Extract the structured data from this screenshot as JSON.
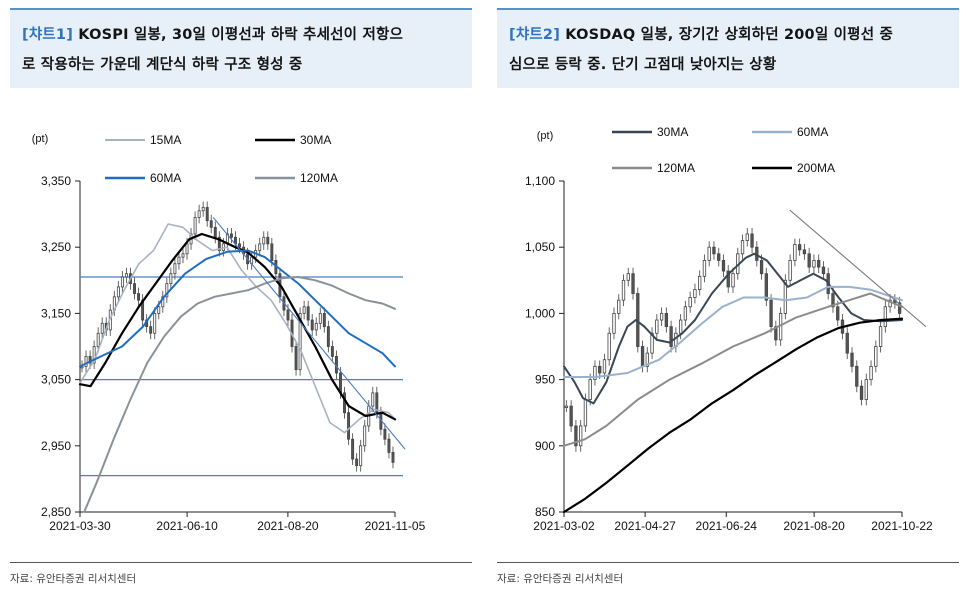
{
  "charts": [
    {
      "tag": "[챠트1]",
      "title_line1": "KOSPI 일봉, 30일 이평선과 하락 추세선이 저항으",
      "title_line2": "로 작용하는 가운데 계단식 하락 구조 형성 중",
      "source": "자료: 유안타증권 리서치센터"
    },
    {
      "tag": "[챠트2]",
      "title_line1": "KOSDAQ 일봉, 장기간 상회하던 200일 이평선 중",
      "title_line2": "심으로 등락 중. 단기 고점대 낮아지는 상황",
      "source": "자료: 유안타증권 리서치센터"
    }
  ],
  "chart_data": [
    {
      "type": "line",
      "unit": "(pt)",
      "ylim": [
        2850,
        3350
      ],
      "yticks": [
        "3,350",
        "3,250",
        "3,150",
        "3,050",
        "2,950",
        "2,850"
      ],
      "xticks": [
        "2021-03-30",
        "2021-06-10",
        "2021-08-20",
        "2021-11-05"
      ],
      "x_start": "2021-03-30",
      "x_end": "2021-11-05",
      "horizontal_lines": [
        3205,
        3050,
        2905
      ],
      "trendline": [
        [
          "2021-07-01",
          3295
        ],
        [
          "2021-11-12",
          2945
        ]
      ],
      "candles": [
        3070,
        3085,
        3075,
        3100,
        3120,
        3135,
        3125,
        3155,
        3175,
        3190,
        3205,
        3210,
        3195,
        3180,
        3170,
        3140,
        3130,
        3120,
        3150,
        3160,
        3175,
        3195,
        3210,
        3225,
        3235,
        3240,
        3255,
        3270,
        3295,
        3305,
        3310,
        3290,
        3280,
        3265,
        3245,
        3255,
        3270,
        3265,
        3255,
        3250,
        3240,
        3225,
        3235,
        3245,
        3255,
        3265,
        3255,
        3230,
        3210,
        3175,
        3155,
        3140,
        3100,
        3065,
        3150,
        3160,
        3140,
        3125,
        3135,
        3150,
        3130,
        3100,
        3085,
        3060,
        3030,
        3000,
        2960,
        2930,
        2920,
        2950,
        2980,
        3010,
        3030,
        3000,
        2975,
        2960,
        2940,
        2925
      ],
      "series": [
        {
          "name": "15MA",
          "color": "#a8b3c2",
          "width": 1.6,
          "values": [
            [
              0,
              3045
            ],
            [
              7,
              3080
            ],
            [
              14,
              3140
            ],
            [
              21,
              3185
            ],
            [
              28,
              3225
            ],
            [
              35,
              3245
            ],
            [
              42,
              3285
            ],
            [
              49,
              3280
            ],
            [
              56,
              3260
            ],
            [
              63,
              3245
            ],
            [
              70,
              3250
            ],
            [
              77,
              3215
            ],
            [
              84,
              3190
            ],
            [
              91,
              3170
            ],
            [
              98,
              3135
            ],
            [
              105,
              3095
            ],
            [
              112,
              3040
            ],
            [
              119,
              2985
            ],
            [
              126,
              2970
            ],
            [
              133,
              2990
            ],
            [
              140,
              3005
            ],
            [
              147,
              3000
            ],
            [
              150,
              2990
            ]
          ]
        },
        {
          "name": "30MA",
          "color": "#000000",
          "width": 2.2,
          "values": [
            [
              0,
              3043
            ],
            [
              5,
              3040
            ],
            [
              12,
              3075
            ],
            [
              20,
              3120
            ],
            [
              28,
              3160
            ],
            [
              36,
              3195
            ],
            [
              44,
              3230
            ],
            [
              52,
              3262
            ],
            [
              58,
              3270
            ],
            [
              66,
              3262
            ],
            [
              74,
              3250
            ],
            [
              80,
              3242
            ],
            [
              88,
              3220
            ],
            [
              96,
              3190
            ],
            [
              104,
              3145
            ],
            [
              112,
              3100
            ],
            [
              120,
              3050
            ],
            [
              128,
              3010
            ],
            [
              136,
              2995
            ],
            [
              144,
              3000
            ],
            [
              150,
              2990
            ]
          ]
        },
        {
          "name": "60MA",
          "color": "#1e6dc2",
          "width": 2.0,
          "values": [
            [
              0,
              3070
            ],
            [
              10,
              3085
            ],
            [
              20,
              3100
            ],
            [
              30,
              3130
            ],
            [
              40,
              3175
            ],
            [
              50,
              3210
            ],
            [
              60,
              3232
            ],
            [
              70,
              3243
            ],
            [
              80,
              3245
            ],
            [
              88,
              3235
            ],
            [
              96,
              3215
            ],
            [
              104,
              3195
            ],
            [
              112,
              3170
            ],
            [
              120,
              3145
            ],
            [
              128,
              3120
            ],
            [
              136,
              3105
            ],
            [
              144,
              3090
            ],
            [
              150,
              3070
            ]
          ]
        },
        {
          "name": "120MA",
          "color": "#8a9299",
          "width": 2.0,
          "values": [
            [
              2,
              2850
            ],
            [
              8,
              2895
            ],
            [
              16,
              2960
            ],
            [
              24,
              3020
            ],
            [
              32,
              3075
            ],
            [
              40,
              3115
            ],
            [
              48,
              3145
            ],
            [
              56,
              3165
            ],
            [
              64,
              3175
            ],
            [
              72,
              3180
            ],
            [
              80,
              3185
            ],
            [
              88,
              3195
            ],
            [
              96,
              3203
            ],
            [
              104,
              3205
            ],
            [
              112,
              3200
            ],
            [
              120,
              3192
            ],
            [
              128,
              3180
            ],
            [
              136,
              3170
            ],
            [
              144,
              3165
            ],
            [
              150,
              3157
            ]
          ]
        }
      ]
    },
    {
      "type": "line",
      "unit": "(pt)",
      "ylim": [
        850,
        1100
      ],
      "yticks": [
        "1,100",
        "1,050",
        "1,000",
        "950",
        "900",
        "850"
      ],
      "xticks": [
        "2021-03-02",
        "2021-04-27",
        "2021-06-24",
        "2021-08-20",
        "2021-10-22"
      ],
      "x_start": "2021-03-02",
      "x_end": "2021-10-29",
      "trendline": [
        [
          "2021-08-10",
          1078
        ],
        [
          "2021-11-15",
          990
        ]
      ],
      "candles": [
        930,
        915,
        900,
        915,
        935,
        950,
        960,
        955,
        965,
        985,
        1000,
        1010,
        1025,
        1030,
        1015,
        975,
        960,
        970,
        985,
        995,
        1000,
        990,
        975,
        985,
        995,
        1005,
        1012,
        1018,
        1028,
        1040,
        1050,
        1045,
        1040,
        1032,
        1020,
        1030,
        1045,
        1055,
        1060,
        1050,
        1040,
        1030,
        1010,
        990,
        980,
        1000,
        1025,
        1040,
        1052,
        1048,
        1045,
        1035,
        1040,
        1035,
        1030,
        1015,
        1005,
        995,
        985,
        970,
        960,
        945,
        935,
        950,
        960,
        975,
        990,
        1005,
        1010,
        1008,
        1000
      ],
      "series": [
        {
          "name": "30MA",
          "color": "#3a4653",
          "width": 2.0,
          "values": [
            [
              0,
              960
            ],
            [
              5,
              948
            ],
            [
              9,
              936
            ],
            [
              14,
              932
            ],
            [
              20,
              948
            ],
            [
              26,
              975
            ],
            [
              30,
              990
            ],
            [
              34,
              995
            ],
            [
              38,
              990
            ],
            [
              44,
              980
            ],
            [
              50,
              978
            ],
            [
              56,
              985
            ],
            [
              62,
              995
            ],
            [
              70,
              1015
            ],
            [
              78,
              1030
            ],
            [
              86,
              1042
            ],
            [
              90,
              1045
            ],
            [
              96,
              1040
            ],
            [
              102,
              1028
            ],
            [
              106,
              1020
            ],
            [
              112,
              1025
            ],
            [
              118,
              1030
            ],
            [
              124,
              1025
            ],
            [
              130,
              1012
            ],
            [
              136,
              1000
            ],
            [
              142,
              995
            ],
            [
              150,
              994
            ],
            [
              160,
              995
            ]
          ]
        },
        {
          "name": "60MA",
          "color": "#9ab1cc",
          "width": 2.0,
          "values": [
            [
              0,
              952
            ],
            [
              15,
              952
            ],
            [
              30,
              955
            ],
            [
              45,
              965
            ],
            [
              55,
              978
            ],
            [
              65,
              992
            ],
            [
              75,
              1005
            ],
            [
              85,
              1012
            ],
            [
              95,
              1012
            ],
            [
              105,
              1010
            ],
            [
              115,
              1012
            ],
            [
              125,
              1020
            ],
            [
              135,
              1020
            ],
            [
              145,
              1018
            ],
            [
              160,
              1010
            ]
          ]
        },
        {
          "name": "120MA",
          "color": "#8c8c8c",
          "width": 2.0,
          "values": [
            [
              0,
              900
            ],
            [
              10,
              905
            ],
            [
              20,
              915
            ],
            [
              35,
              935
            ],
            [
              50,
              950
            ],
            [
              65,
              962
            ],
            [
              80,
              975
            ],
            [
              95,
              985
            ],
            [
              110,
              997
            ],
            [
              125,
              1005
            ],
            [
              135,
              1010
            ],
            [
              145,
              1015
            ],
            [
              160,
              1005
            ]
          ]
        },
        {
          "name": "200MA",
          "color": "#000000",
          "width": 2.2,
          "values": [
            [
              0,
              850
            ],
            [
              10,
              860
            ],
            [
              20,
              872
            ],
            [
              30,
              885
            ],
            [
              40,
              898
            ],
            [
              50,
              910
            ],
            [
              60,
              920
            ],
            [
              70,
              932
            ],
            [
              80,
              942
            ],
            [
              90,
              953
            ],
            [
              100,
              963
            ],
            [
              110,
              973
            ],
            [
              120,
              982
            ],
            [
              130,
              989
            ],
            [
              140,
              993
            ],
            [
              150,
              995
            ],
            [
              160,
              996
            ]
          ]
        }
      ]
    }
  ]
}
